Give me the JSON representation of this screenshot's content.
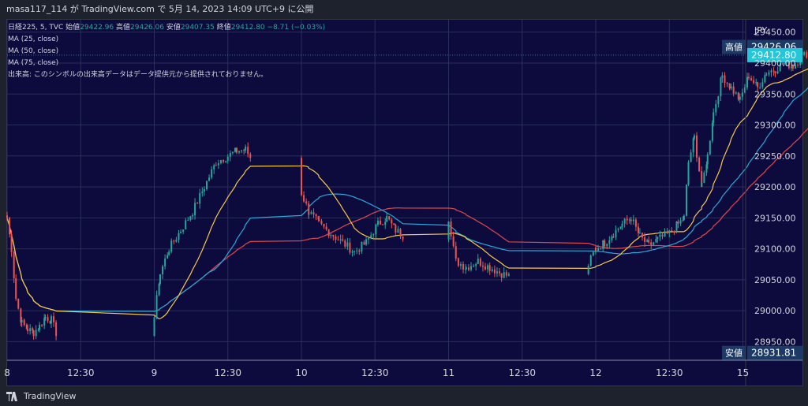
{
  "header": {
    "publish_text": "masa117_114 が TradingView.com で 5月 14, 2023 14:09 UTC+9 に公開"
  },
  "legend": {
    "symbol_line": {
      "symbol": "日経225, 5, TVC",
      "open_label": "始値",
      "open": "29422.96",
      "high_label": "高値",
      "high": "29426.06",
      "low_label": "安値",
      "low": "29407.35",
      "close_label": "終値",
      "close": "29412.80",
      "change": "−8.71 (−0.03%)"
    },
    "ma25": "MA (25, close)",
    "ma50": "MA (50, close)",
    "ma75": "MA (75, close)",
    "volume_note": "出来高: このシンボルの出来高データはデータ提供元から提供されておりません。"
  },
  "footer": {
    "brand": "TradingView"
  },
  "colors": {
    "background": "#0d0b3d",
    "up": "#26a69a",
    "down": "#ef5350",
    "ma25": "#f7c948",
    "ma50": "#29a9d8",
    "ma75": "#e0474c",
    "price_tag": "#26c6da",
    "high_low_tag": "#1c3a66"
  },
  "chart_data": {
    "type": "candlestick",
    "currency": "JPY",
    "y_ticks": [
      28950,
      29000,
      29050,
      29100,
      29150,
      29200,
      29250,
      29300,
      29350,
      29400,
      29450
    ],
    "ylim": [
      28920,
      29470
    ],
    "x_ticks": [
      "8",
      "12:30",
      "9",
      "12:30",
      "10",
      "12:30",
      "11",
      "12:30",
      "12",
      "12:30",
      "15"
    ],
    "high_marker": {
      "label": "高値",
      "value": 29426.06
    },
    "low_marker": {
      "label": "安値",
      "value": 28931.81
    },
    "last_price": 29412.8,
    "last_price_label": "29412.80",
    "high_label_text": "29426.06",
    "low_label_text": "28931.81",
    "close_path": [
      [
        0,
        29150
      ],
      [
        0.03,
        29100
      ],
      [
        0.06,
        29020
      ],
      [
        0.1,
        28980
      ],
      [
        0.14,
        28970
      ],
      [
        0.18,
        28965
      ],
      [
        0.22,
        28975
      ],
      [
        0.26,
        28990
      ],
      [
        0.3,
        28985
      ],
      [
        0.34,
        28960
      ],
      [
        1.0,
        28990
      ],
      [
        1.04,
        29060
      ],
      [
        1.1,
        29100
      ],
      [
        1.18,
        29130
      ],
      [
        1.26,
        29160
      ],
      [
        1.34,
        29200
      ],
      [
        1.42,
        29240
      ],
      [
        1.5,
        29250
      ],
      [
        1.56,
        29258
      ],
      [
        1.62,
        29260
      ],
      [
        1.66,
        29245
      ],
      [
        2.0,
        29190
      ],
      [
        2.05,
        29160
      ],
      [
        2.12,
        29140
      ],
      [
        2.2,
        29125
      ],
      [
        2.28,
        29110
      ],
      [
        2.36,
        29095
      ],
      [
        2.44,
        29110
      ],
      [
        2.52,
        29140
      ],
      [
        2.58,
        29150
      ],
      [
        2.64,
        29130
      ],
      [
        2.7,
        29120
      ],
      [
        3.0,
        29150
      ],
      [
        3.05,
        29080
      ],
      [
        3.12,
        29070
      ],
      [
        3.2,
        29080
      ],
      [
        3.28,
        29070
      ],
      [
        3.36,
        29060
      ],
      [
        3.42,
        29055
      ],
      [
        3.95,
        29075
      ],
      [
        4.0,
        29100
      ],
      [
        4.06,
        29110
      ],
      [
        4.12,
        29125
      ],
      [
        4.18,
        29140
      ],
      [
        4.24,
        29150
      ],
      [
        4.3,
        29120
      ],
      [
        4.36,
        29105
      ],
      [
        4.42,
        29115
      ],
      [
        4.5,
        29125
      ],
      [
        4.56,
        29140
      ],
      [
        4.6,
        29150
      ],
      [
        4.63,
        29240
      ],
      [
        4.67,
        29280
      ],
      [
        4.72,
        29200
      ],
      [
        4.76,
        29250
      ],
      [
        4.8,
        29320
      ],
      [
        4.86,
        29380
      ],
      [
        4.92,
        29360
      ],
      [
        4.98,
        29340
      ],
      [
        5.04,
        29380
      ],
      [
        5.1,
        29360
      ],
      [
        5.16,
        29385
      ],
      [
        5.22,
        29390
      ],
      [
        5.28,
        29400
      ],
      [
        5.34,
        29395
      ],
      [
        5.4,
        29410
      ],
      [
        5.46,
        29420
      ],
      [
        5.5,
        29412.8
      ]
    ],
    "series": [
      {
        "name": "MA (25, close)"
      },
      {
        "name": "MA (50, close)"
      },
      {
        "name": "MA (75, close)"
      }
    ]
  }
}
